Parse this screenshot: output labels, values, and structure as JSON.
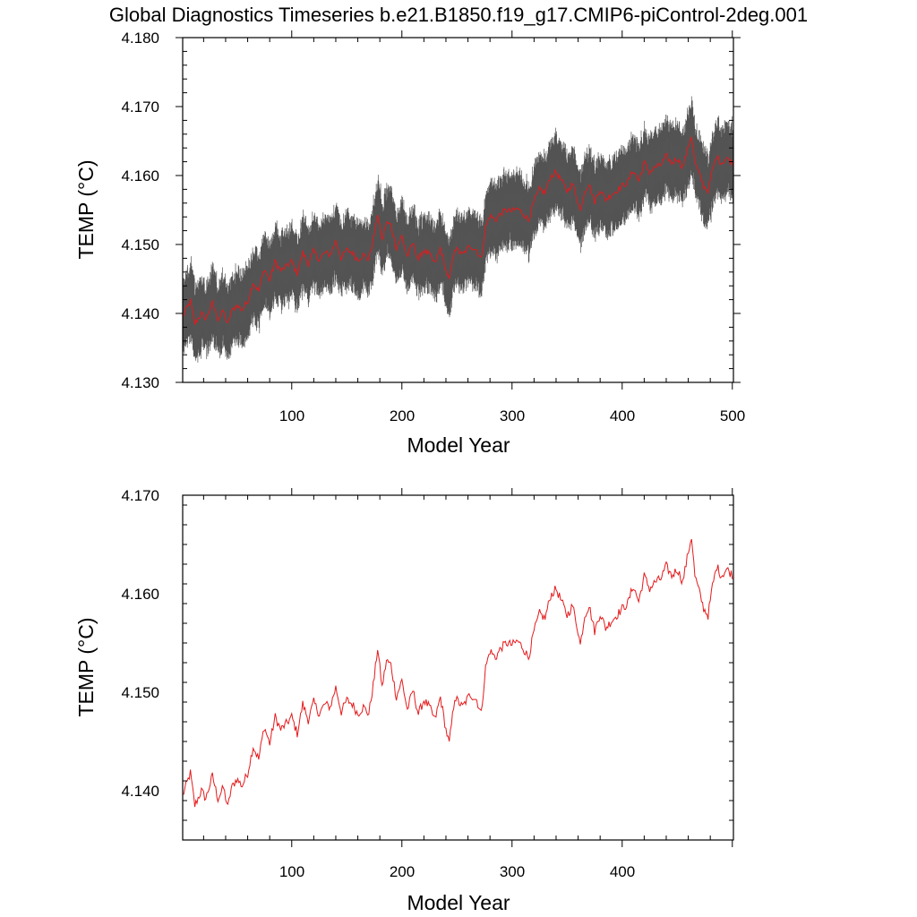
{
  "title": "Global Diagnostics Timeseries b.e21.B1850.f19_g17.CMIP6-piControl-2deg.001",
  "colors": {
    "mean_line": "#e41a1c",
    "monthly": "#1a1a1a",
    "frame": "#000000"
  },
  "chart_data": [
    {
      "type": "line",
      "name": "top-panel",
      "xlabel": "Model Year",
      "ylabel": "TEMP (°C)",
      "xlim": [
        1,
        501
      ],
      "ylim": [
        4.13,
        4.18
      ],
      "xticks": [
        100,
        200,
        300,
        400,
        500
      ],
      "xtick_labels": [
        "100",
        "200",
        "300",
        "400",
        "500"
      ],
      "yticks": [
        4.13,
        4.14,
        4.15,
        4.16,
        4.17,
        4.18
      ],
      "ytick_labels": [
        "4.130",
        "4.140",
        "4.150",
        "4.160",
        "4.170",
        "4.180"
      ],
      "series": [
        {
          "name": "monthly",
          "style": "dense seasonal band (~±0.005 around annual mean)",
          "color": "#1a1a1a"
        },
        {
          "name": "annual",
          "color": "#e41a1c"
        }
      ]
    },
    {
      "type": "line",
      "name": "bottom-panel",
      "xlabel": "Model Year",
      "ylabel": "TEMP (°C)",
      "xlim": [
        1,
        501
      ],
      "ylim": [
        4.135,
        4.17
      ],
      "xticks": [
        100,
        200,
        300,
        400
      ],
      "xtick_labels": [
        "100",
        "200",
        "300",
        "400"
      ],
      "yticks": [
        4.14,
        4.15,
        4.16,
        4.17
      ],
      "ytick_labels": [
        "4.140",
        "4.150",
        "4.160",
        "4.170"
      ],
      "series": [
        {
          "name": "annual",
          "color": "#e41a1c"
        }
      ]
    }
  ],
  "annual_anchor_points": {
    "x": [
      1,
      8,
      12,
      18,
      22,
      28,
      33,
      38,
      42,
      45,
      50,
      55,
      60,
      65,
      70,
      75,
      80,
      85,
      90,
      95,
      100,
      105,
      110,
      115,
      120,
      125,
      130,
      135,
      140,
      145,
      150,
      155,
      160,
      165,
      170,
      175,
      178,
      182,
      186,
      190,
      195,
      200,
      205,
      210,
      215,
      220,
      225,
      230,
      235,
      240,
      243,
      248,
      255,
      262,
      268,
      272,
      276,
      280,
      285,
      290,
      295,
      300,
      305,
      310,
      315,
      320,
      325,
      330,
      335,
      340,
      345,
      350,
      355,
      360,
      362,
      366,
      370,
      375,
      380,
      385,
      390,
      395,
      400,
      405,
      410,
      415,
      420,
      425,
      430,
      435,
      440,
      445,
      450,
      455,
      460,
      463,
      466,
      470,
      474,
      478,
      482,
      486,
      490,
      495,
      501
    ],
    "y": [
      4.1395,
      4.1418,
      4.1385,
      4.14,
      4.1392,
      4.1415,
      4.1392,
      4.1403,
      4.1383,
      4.1402,
      4.1412,
      4.1405,
      4.1418,
      4.1445,
      4.1432,
      4.1465,
      4.1448,
      4.1475,
      4.1462,
      4.1468,
      4.1475,
      4.1458,
      4.1488,
      4.1472,
      4.149,
      4.1478,
      4.1488,
      4.1485,
      4.1505,
      4.148,
      4.1492,
      4.1488,
      4.1478,
      4.1485,
      4.1478,
      4.1515,
      4.1545,
      4.1505,
      4.1532,
      4.1528,
      4.1495,
      4.1512,
      4.1482,
      4.1502,
      4.1478,
      4.1492,
      4.1485,
      4.1472,
      4.1495,
      4.1462,
      4.1448,
      4.1495,
      4.1485,
      4.1498,
      4.1492,
      4.1478,
      4.1525,
      4.1542,
      4.1535,
      4.1545,
      4.155,
      4.1548,
      4.1552,
      4.1545,
      4.1535,
      4.1562,
      4.158,
      4.1575,
      4.1598,
      4.1605,
      4.1592,
      4.1578,
      4.1588,
      4.1562,
      4.1548,
      4.1578,
      4.1588,
      4.1562,
      4.158,
      4.1565,
      4.1572,
      4.1578,
      4.1585,
      4.159,
      4.1608,
      4.1592,
      4.1618,
      4.1605,
      4.1612,
      4.1615,
      4.1628,
      4.1618,
      4.1625,
      4.1612,
      4.1642,
      4.1658,
      4.1618,
      4.1602,
      4.1585,
      4.1578,
      4.1608,
      4.1628,
      4.1618,
      4.1625,
      4.1618
    ]
  }
}
